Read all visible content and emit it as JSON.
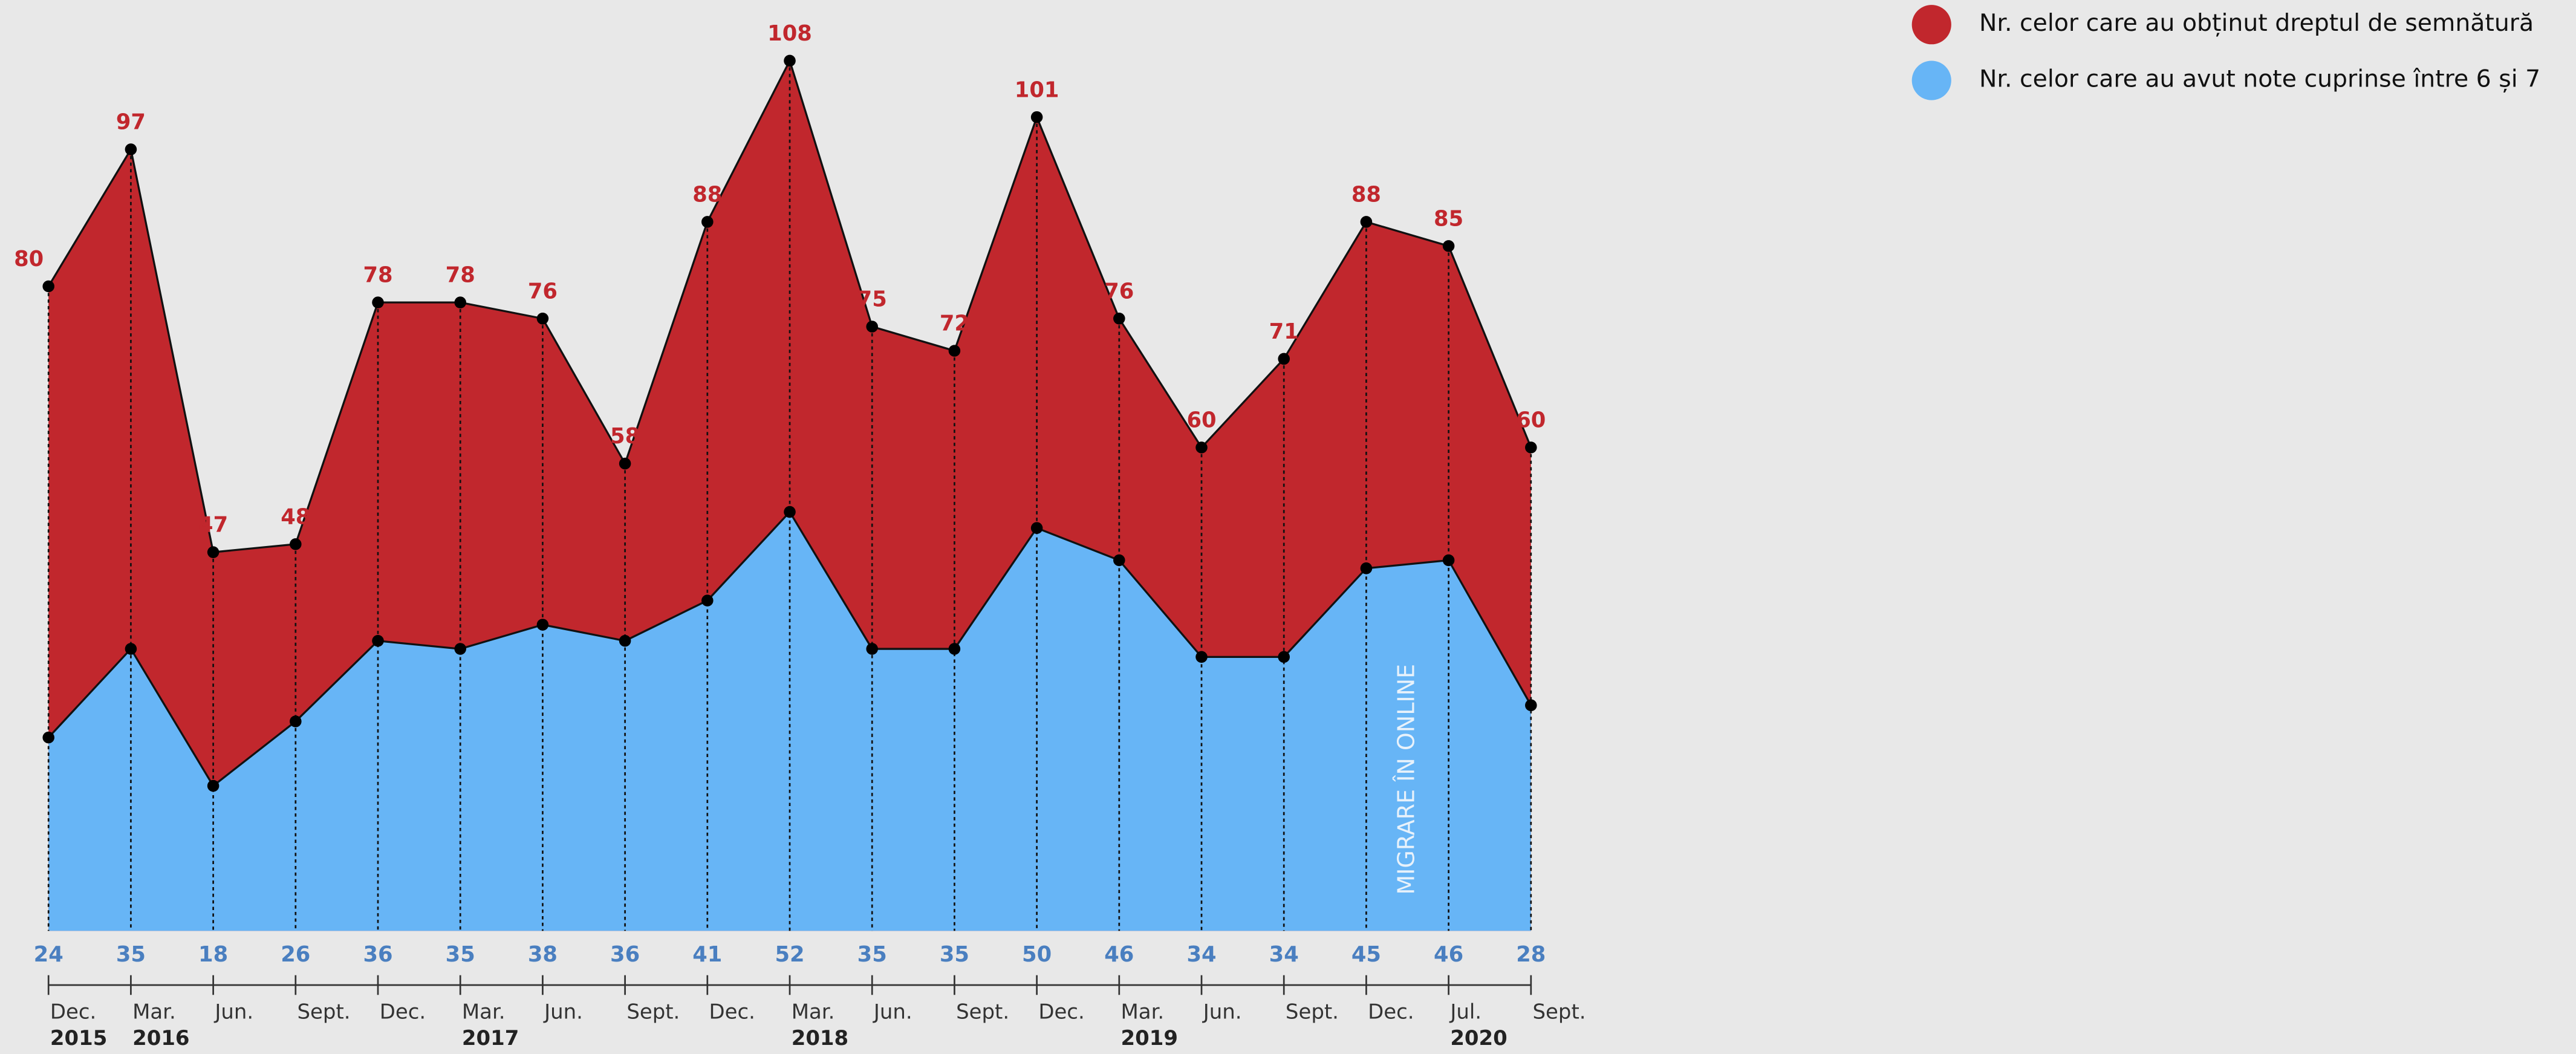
{
  "chart_data": {
    "type": "area",
    "categories": [
      "Dec.",
      "Mar.",
      "Jun.",
      "Sept.",
      "Dec.",
      "Mar.",
      "Jun.",
      "Sept.",
      "Dec.",
      "Mar.",
      "Jun.",
      "Sept.",
      "Dec.",
      "Mar.",
      "Jun.",
      "Sept.",
      "Dec.",
      "Jul.",
      "Sept."
    ],
    "years": [
      "2015",
      "2016",
      null,
      null,
      null,
      "2017",
      null,
      null,
      null,
      "2018",
      null,
      null,
      null,
      "2019",
      null,
      null,
      null,
      "2020",
      null
    ],
    "series": [
      {
        "name": "Nr. celor care au obținut dreptul de semnătură",
        "color": "#c1272d",
        "values": [
          80,
          97,
          47,
          48,
          78,
          78,
          76,
          58,
          88,
          108,
          75,
          72,
          101,
          76,
          60,
          71,
          88,
          85,
          60
        ]
      },
      {
        "name": "Nr. celor care au avut note cuprinse între 6 și 7",
        "color": "#67b5f6",
        "values": [
          24,
          35,
          18,
          26,
          36,
          35,
          38,
          36,
          41,
          52,
          35,
          35,
          50,
          46,
          34,
          34,
          45,
          46,
          28
        ]
      }
    ],
    "ylim": [
      0,
      108
    ],
    "annotation": "MIGRARE ÎN ONLINE",
    "legend": "top-right"
  }
}
